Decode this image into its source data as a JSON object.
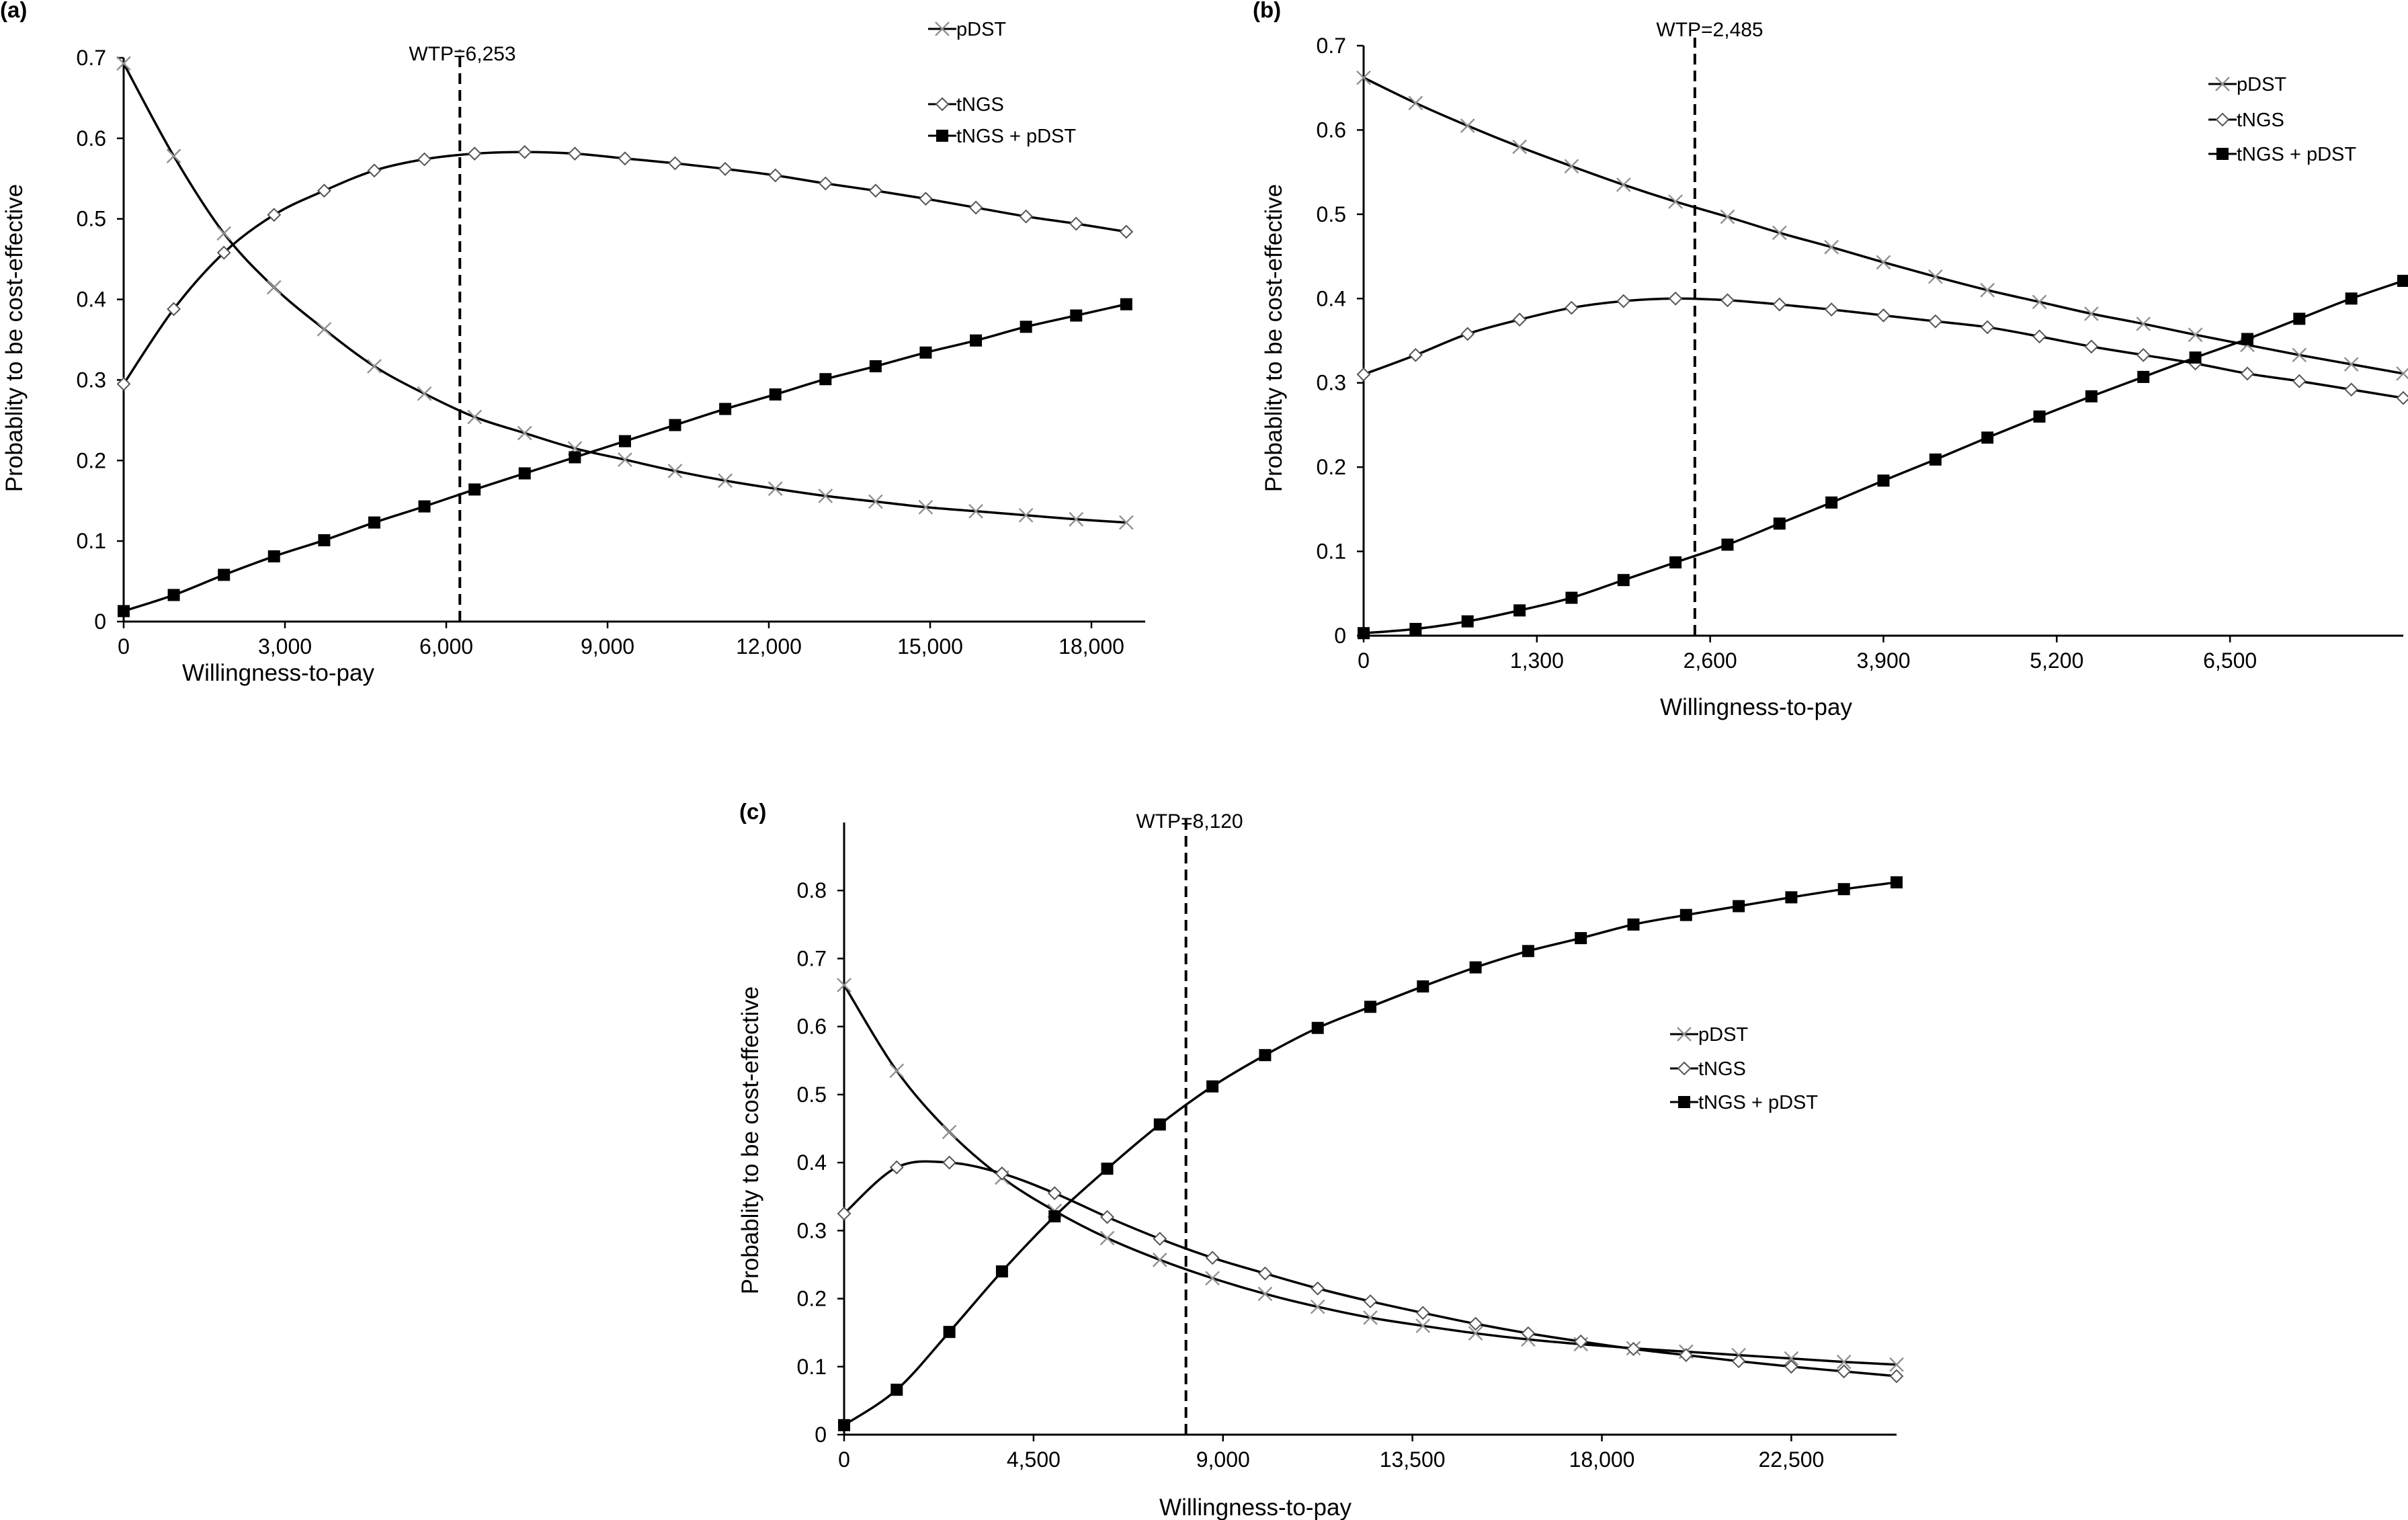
{
  "chart_data": [
    {
      "type": "line",
      "panel_label": "(a)",
      "xlabel": "Willingness-to-pay",
      "ylabel": "Probablity to be cost-effective",
      "xlim": [
        0,
        19000
      ],
      "ylim": [
        0,
        0.7
      ],
      "x_ticks": [
        0,
        3000,
        6000,
        9000,
        12000,
        15000,
        18000
      ],
      "x_tick_labels": [
        "0",
        "3,000",
        "6,000",
        "9,000",
        "12,000",
        "15,000",
        "18,000"
      ],
      "y_ticks": [
        0,
        0.1,
        0.2,
        0.3,
        0.4,
        0.5,
        0.6,
        0.7
      ],
      "y_tick_labels": [
        "0",
        "0.1",
        "0.2",
        "0.3",
        "0.4",
        "0.5",
        "0.6",
        "0.7"
      ],
      "wtp": {
        "value": 6253,
        "label": "WTP=6,253"
      },
      "legend_position": "top-right",
      "x": [
        0,
        932,
        1865,
        2797,
        3730,
        4662,
        5594,
        6527,
        7459,
        8392,
        9324,
        10256,
        11189,
        12121,
        13054,
        13986,
        14918,
        15851,
        16783,
        17716,
        18648
      ],
      "series": [
        {
          "name": "pDST",
          "marker": "x",
          "values": [
            0.693,
            0.578,
            0.482,
            0.415,
            0.363,
            0.317,
            0.283,
            0.254,
            0.234,
            0.215,
            0.201,
            0.187,
            0.175,
            0.165,
            0.156,
            0.149,
            0.142,
            0.137,
            0.132,
            0.127,
            0.123
          ]
        },
        {
          "name": "tNGS",
          "marker": "diamond",
          "values": [
            0.295,
            0.388,
            0.458,
            0.505,
            0.535,
            0.56,
            0.574,
            0.581,
            0.583,
            0.581,
            0.575,
            0.569,
            0.562,
            0.554,
            0.544,
            0.535,
            0.525,
            0.514,
            0.503,
            0.494,
            0.484
          ]
        },
        {
          "name": "tNGS + pDST",
          "marker": "square",
          "values": [
            0.013,
            0.033,
            0.058,
            0.081,
            0.101,
            0.123,
            0.143,
            0.164,
            0.184,
            0.204,
            0.224,
            0.244,
            0.264,
            0.282,
            0.301,
            0.317,
            0.334,
            0.349,
            0.366,
            0.38,
            0.394
          ]
        }
      ]
    },
    {
      "type": "line",
      "panel_label": "(b)",
      "xlabel": "Willingness-to-pay",
      "ylabel": "Probablity to be cost-effective",
      "xlim": [
        0,
        7800
      ],
      "ylim": [
        0,
        0.7
      ],
      "x_ticks": [
        0,
        1300,
        2600,
        3900,
        5200,
        6500
      ],
      "x_tick_labels": [
        "0",
        "1,300",
        "2,600",
        "3,900",
        "5,200",
        "6,500"
      ],
      "y_ticks": [
        0,
        0.1,
        0.2,
        0.3,
        0.4,
        0.5,
        0.6,
        0.7
      ],
      "y_tick_labels": [
        "0",
        "0.1",
        "0.2",
        "0.3",
        "0.4",
        "0.5",
        "0.6",
        "0.7"
      ],
      "wtp": {
        "value": 2485,
        "label": "WTP=2,485"
      },
      "legend_position": "top-right",
      "x": [
        0,
        390,
        780,
        1170,
        1560,
        1950,
        2340,
        2730,
        3120,
        3510,
        3900,
        4290,
        4680,
        5070,
        5460,
        5850,
        6240,
        6630,
        7020,
        7410,
        7800
      ],
      "series": [
        {
          "name": "pDST",
          "marker": "x",
          "values": [
            0.662,
            0.632,
            0.605,
            0.58,
            0.557,
            0.535,
            0.515,
            0.497,
            0.478,
            0.461,
            0.443,
            0.426,
            0.41,
            0.396,
            0.382,
            0.37,
            0.357,
            0.345,
            0.333,
            0.322,
            0.311
          ]
        },
        {
          "name": "tNGS",
          "marker": "diamond",
          "values": [
            0.31,
            0.333,
            0.358,
            0.375,
            0.389,
            0.397,
            0.4,
            0.398,
            0.393,
            0.387,
            0.38,
            0.373,
            0.366,
            0.355,
            0.343,
            0.333,
            0.323,
            0.311,
            0.302,
            0.292,
            0.282
          ]
        },
        {
          "name": "tNGS + pDST",
          "marker": "square",
          "values": [
            0.003,
            0.008,
            0.017,
            0.03,
            0.045,
            0.066,
            0.087,
            0.108,
            0.133,
            0.158,
            0.184,
            0.209,
            0.235,
            0.26,
            0.284,
            0.307,
            0.33,
            0.352,
            0.376,
            0.4,
            0.421
          ]
        }
      ]
    },
    {
      "type": "line",
      "panel_label": "(c)",
      "xlabel": "Willingness-to-pay",
      "ylabel": "Probablity to be cost-effective",
      "xlim": [
        0,
        25000
      ],
      "ylim": [
        0,
        0.9
      ],
      "x_ticks": [
        0,
        4500,
        9000,
        13500,
        18000,
        22500
      ],
      "x_tick_labels": [
        "0",
        "4,500",
        "9,000",
        "13,500",
        "18,000",
        "22,500"
      ],
      "y_ticks": [
        0,
        0.1,
        0.2,
        0.3,
        0.4,
        0.5,
        0.6,
        0.7,
        0.8
      ],
      "y_tick_labels": [
        "0",
        "0.1",
        "0.2",
        "0.3",
        "0.4",
        "0.5",
        "0.6",
        "0.7",
        "0.8"
      ],
      "wtp": {
        "value": 8120,
        "label": "WTP=8,120"
      },
      "legend_position": "center-right",
      "x": [
        0,
        1250,
        2500,
        3750,
        5000,
        6250,
        7500,
        8750,
        10000,
        11250,
        12500,
        13750,
        15000,
        16250,
        17500,
        18750,
        20000,
        21250,
        22500,
        23750,
        25000
      ],
      "series": [
        {
          "name": "pDST",
          "marker": "x",
          "values": [
            0.661,
            0.535,
            0.445,
            0.378,
            0.329,
            0.289,
            0.257,
            0.23,
            0.207,
            0.188,
            0.172,
            0.16,
            0.149,
            0.14,
            0.133,
            0.127,
            0.122,
            0.117,
            0.112,
            0.107,
            0.103
          ]
        },
        {
          "name": "tNGS",
          "marker": "diamond",
          "values": [
            0.325,
            0.393,
            0.4,
            0.384,
            0.355,
            0.32,
            0.288,
            0.26,
            0.237,
            0.215,
            0.196,
            0.179,
            0.163,
            0.149,
            0.137,
            0.126,
            0.117,
            0.108,
            0.1,
            0.093,
            0.086
          ]
        },
        {
          "name": "tNGS + pDST",
          "marker": "square",
          "values": [
            0.014,
            0.066,
            0.151,
            0.24,
            0.321,
            0.391,
            0.456,
            0.512,
            0.558,
            0.598,
            0.629,
            0.659,
            0.687,
            0.711,
            0.73,
            0.75,
            0.764,
            0.777,
            0.79,
            0.802,
            0.812
          ]
        }
      ]
    }
  ]
}
